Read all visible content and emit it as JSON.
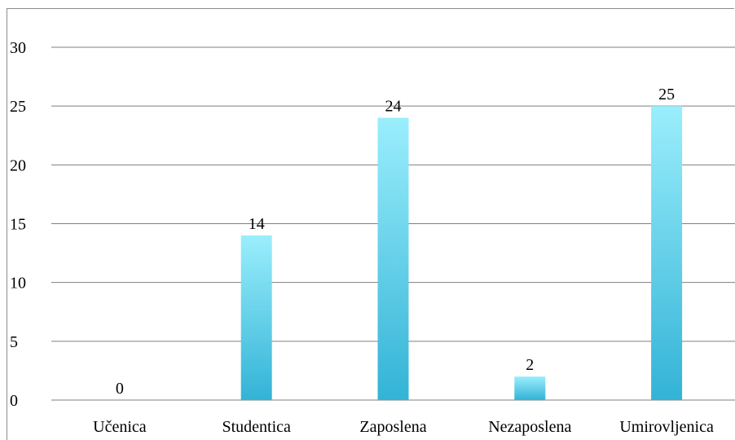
{
  "chart_data": {
    "type": "bar",
    "categories": [
      "Učenica",
      "Studentica",
      "Zaposlena",
      "Nezaposlena",
      "Umirovljenica"
    ],
    "values": [
      0,
      14,
      24,
      2,
      25
    ],
    "data_labels": [
      "0",
      "14",
      "24",
      "2",
      "25"
    ],
    "title": "",
    "xlabel": "",
    "ylabel": "",
    "ylim": [
      0,
      30
    ],
    "yticks": [
      "0",
      "5",
      "10",
      "15",
      "20",
      "25",
      "30"
    ],
    "grid": true,
    "legend": "none",
    "colors": {
      "bar_top": "#9aeefc",
      "bar_bottom": "#33b3d6",
      "grid": "#7f7f7f",
      "text": "#000000"
    }
  }
}
